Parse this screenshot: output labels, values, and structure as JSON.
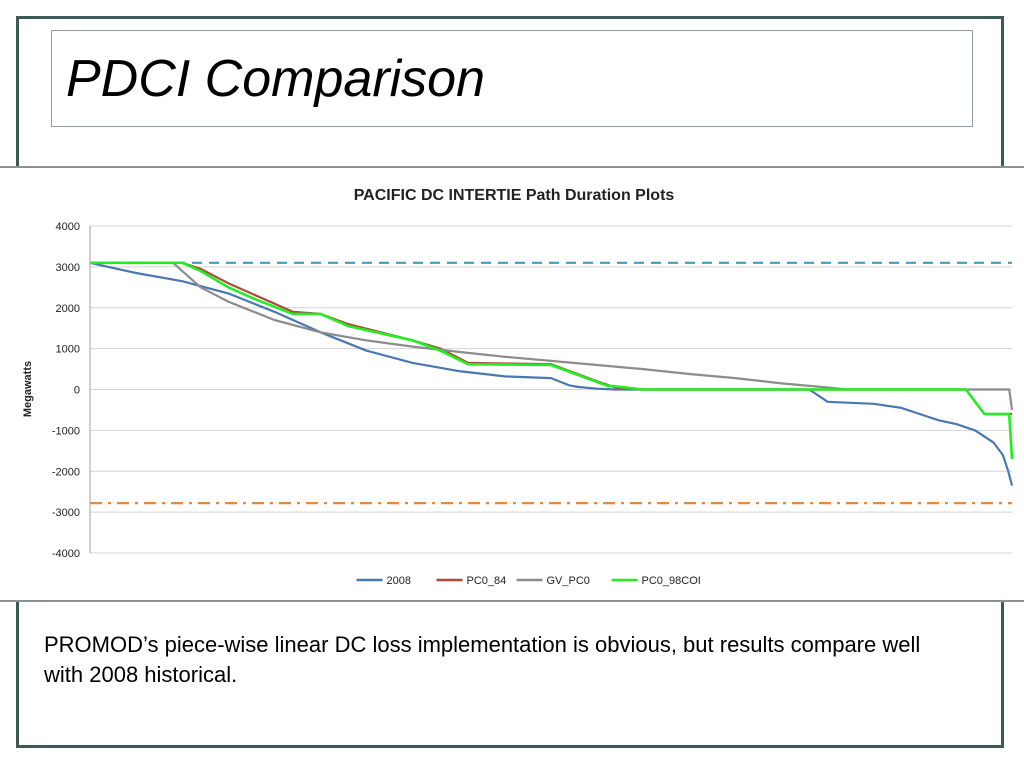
{
  "slide": {
    "title": "PDCI Comparison",
    "caption": "PROMOD’s piece-wise linear DC loss implementation is obvious, but results compare well with 2008 historical."
  },
  "colors": {
    "frame": "#3e5a58",
    "series_2008": "#4a78b0",
    "series_pc0_84": "#b0483c",
    "series_gv_pc0": "#8c8c8c",
    "series_pc0_98coi": "#22ee22",
    "limit_upper": "#3b9cc4",
    "limit_lower": "#e8883a"
  },
  "chart_data": {
    "type": "line",
    "title": "PACIFIC DC INTERTIE Path Duration Plots",
    "xlabel": "",
    "ylabel": "Megawatts",
    "ylim": [
      -4000,
      4000
    ],
    "yticks": [
      4000,
      3000,
      2000,
      1000,
      0,
      -1000,
      -2000,
      -3000,
      -4000
    ],
    "xlim": [
      0,
      100
    ],
    "grid": true,
    "legend_position": "bottom",
    "reference_lines": [
      {
        "y": 3100,
        "style": "dashed",
        "color": "#3b9cc4"
      },
      {
        "y": -2780,
        "style": "dash-dot",
        "color": "#e8883a"
      }
    ],
    "series": [
      {
        "name": "2008",
        "color": "#4a78b0",
        "x": [
          0,
          2,
          5,
          10,
          15,
          20,
          25,
          30,
          35,
          40,
          45,
          50,
          52,
          53,
          55,
          57,
          60,
          65,
          70,
          78,
          79,
          80,
          85,
          88,
          90,
          92,
          94,
          96,
          98,
          99,
          99.6,
          100
        ],
        "y": [
          3100,
          3000,
          2850,
          2650,
          2350,
          1900,
          1400,
          950,
          650,
          450,
          320,
          280,
          100,
          60,
          20,
          0,
          0,
          0,
          0,
          0,
          -150,
          -300,
          -350,
          -450,
          -600,
          -750,
          -850,
          -1000,
          -1300,
          -1600,
          -2000,
          -2350
        ]
      },
      {
        "name": "PC0_84",
        "color": "#b0483c",
        "x": [
          0,
          5,
          10,
          12,
          15,
          18,
          22,
          25,
          28,
          35,
          38,
          41,
          50,
          55,
          57,
          60,
          70,
          80,
          88,
          95,
          97,
          100
        ],
        "y": [
          3100,
          3100,
          3100,
          2950,
          2600,
          2300,
          1900,
          1850,
          1600,
          1200,
          1000,
          650,
          620,
          200,
          50,
          0,
          0,
          0,
          0,
          0,
          -600,
          -600
        ]
      },
      {
        "name": "GV_PC0",
        "color": "#8c8c8c",
        "x": [
          0,
          5,
          9,
          12,
          15,
          20,
          25,
          30,
          35,
          40,
          45,
          50,
          55,
          60,
          65,
          70,
          75,
          80,
          82,
          85,
          90,
          95,
          99.7,
          100
        ],
        "y": [
          3100,
          3100,
          3100,
          2500,
          2150,
          1700,
          1400,
          1200,
          1050,
          920,
          800,
          700,
          600,
          500,
          380,
          280,
          150,
          50,
          0,
          0,
          0,
          0,
          0,
          -500
        ]
      },
      {
        "name": "PC0_98COI",
        "color": "#22ee22",
        "x": [
          0,
          5,
          10,
          12,
          15,
          18,
          22,
          25,
          28,
          35,
          38,
          41,
          50,
          56,
          60,
          70,
          80,
          88,
          95,
          97,
          99.7,
          100
        ],
        "y": [
          3100,
          3100,
          3100,
          2900,
          2500,
          2200,
          1850,
          1850,
          1550,
          1200,
          950,
          620,
          600,
          100,
          0,
          0,
          0,
          0,
          0,
          -600,
          -600,
          -1700
        ]
      }
    ]
  }
}
